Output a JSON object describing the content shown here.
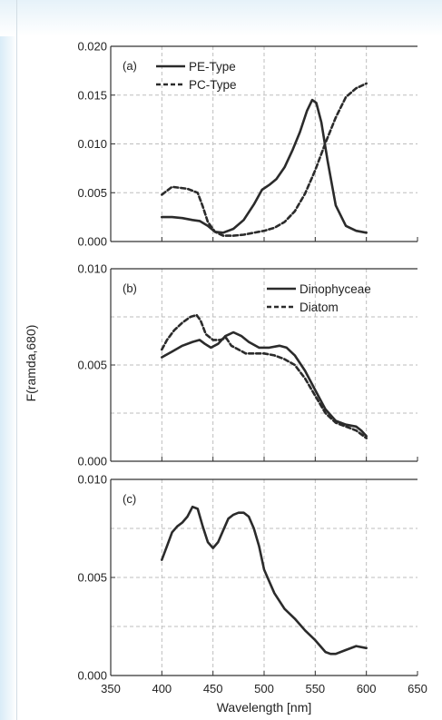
{
  "colors": {
    "line": "#2b2b2b",
    "grid": "#bdbdbd",
    "axis": "#333333",
    "bg_accent": "#d9ecf7"
  },
  "chart_data": [
    {
      "type": "line",
      "panel_label": "(a)",
      "xlim": [
        350,
        650
      ],
      "ylim": [
        0,
        0.02
      ],
      "yticks": [
        "0.000",
        "0.005",
        "0.010",
        "0.015",
        "0.020"
      ],
      "ytick_values": [
        0,
        0.005,
        0.01,
        0.015,
        0.02
      ],
      "grid": true,
      "legend": "top-left",
      "series": [
        {
          "name": "PE-Type",
          "style": "solid",
          "x": [
            400,
            410,
            420,
            430,
            437,
            445,
            452,
            460,
            470,
            480,
            490,
            498,
            505,
            512,
            520,
            528,
            535,
            542,
            547,
            551,
            556,
            562,
            570,
            580,
            590,
            600
          ],
          "y": [
            0.0025,
            0.0025,
            0.0024,
            0.0022,
            0.0021,
            0.0016,
            0.001,
            0.0009,
            0.0013,
            0.0022,
            0.0038,
            0.0053,
            0.0058,
            0.0064,
            0.0076,
            0.0094,
            0.0112,
            0.0134,
            0.0145,
            0.0142,
            0.0122,
            0.0083,
            0.0037,
            0.0016,
            0.0011,
            0.0009
          ]
        },
        {
          "name": "PC-Type",
          "style": "dashed",
          "x": [
            400,
            405,
            410,
            418,
            425,
            430,
            435,
            440,
            445,
            452,
            460,
            470,
            480,
            490,
            500,
            510,
            520,
            530,
            540,
            550,
            560,
            570,
            580,
            590,
            600
          ],
          "y": [
            0.0048,
            0.0052,
            0.0056,
            0.0055,
            0.0054,
            0.0052,
            0.005,
            0.0036,
            0.002,
            0.001,
            0.0006,
            0.0006,
            0.0007,
            0.0009,
            0.0011,
            0.0014,
            0.002,
            0.0031,
            0.0049,
            0.0073,
            0.0101,
            0.0127,
            0.0148,
            0.0157,
            0.0162
          ]
        }
      ]
    },
    {
      "type": "line",
      "panel_label": "(b)",
      "xlim": [
        350,
        650
      ],
      "ylim": [
        0,
        0.01
      ],
      "yticks": [
        "0.000",
        "0.005",
        "0.010"
      ],
      "ytick_values": [
        0,
        0.005,
        0.01
      ],
      "grid": true,
      "legend": "top-right",
      "series": [
        {
          "name": "Dinophyceae",
          "style": "solid",
          "x": [
            400,
            410,
            420,
            430,
            437,
            442,
            448,
            455,
            462,
            470,
            478,
            485,
            495,
            505,
            515,
            522,
            530,
            540,
            550,
            560,
            570,
            580,
            590,
            595,
            600
          ],
          "y": [
            0.0054,
            0.0057,
            0.006,
            0.0062,
            0.0063,
            0.0061,
            0.0059,
            0.0061,
            0.0065,
            0.0067,
            0.0065,
            0.0062,
            0.0059,
            0.0059,
            0.006,
            0.0059,
            0.0055,
            0.0047,
            0.0037,
            0.0027,
            0.0021,
            0.0019,
            0.0018,
            0.0016,
            0.0013
          ]
        },
        {
          "name": "Diatom",
          "style": "dashed",
          "x": [
            400,
            405,
            412,
            420,
            428,
            434,
            438,
            443,
            450,
            457,
            463,
            468,
            475,
            482,
            490,
            500,
            510,
            520,
            530,
            540,
            550,
            560,
            570,
            580,
            590,
            600
          ],
          "y": [
            0.0058,
            0.0063,
            0.0068,
            0.0072,
            0.0075,
            0.0076,
            0.0073,
            0.0066,
            0.0063,
            0.0063,
            0.0064,
            0.006,
            0.0058,
            0.0056,
            0.0056,
            0.0056,
            0.0055,
            0.0053,
            0.005,
            0.0043,
            0.0034,
            0.0025,
            0.002,
            0.0018,
            0.0016,
            0.0012
          ]
        }
      ]
    },
    {
      "type": "line",
      "panel_label": "(c)",
      "xlim": [
        350,
        650
      ],
      "ylim": [
        0,
        0.01
      ],
      "yticks": [
        "0.000",
        "0.005",
        "0.010"
      ],
      "ytick_values": [
        0,
        0.005,
        0.01
      ],
      "xticks": [
        "350",
        "400",
        "450",
        "500",
        "550",
        "600",
        "650"
      ],
      "xtick_values": [
        350,
        400,
        450,
        500,
        550,
        600,
        650
      ],
      "grid": true,
      "series": [
        {
          "name": "",
          "style": "solid",
          "x": [
            400,
            405,
            410,
            415,
            420,
            425,
            430,
            435,
            440,
            445,
            450,
            455,
            460,
            465,
            470,
            475,
            480,
            485,
            490,
            495,
            500,
            510,
            520,
            530,
            540,
            550,
            560,
            565,
            570,
            580,
            590,
            600
          ],
          "y": [
            0.0059,
            0.0066,
            0.0073,
            0.0076,
            0.0078,
            0.0081,
            0.0086,
            0.0085,
            0.0076,
            0.0068,
            0.0065,
            0.0068,
            0.0074,
            0.008,
            0.0082,
            0.0083,
            0.0083,
            0.0081,
            0.0075,
            0.0066,
            0.0054,
            0.0042,
            0.0034,
            0.0029,
            0.0023,
            0.0018,
            0.0012,
            0.0011,
            0.0011,
            0.0013,
            0.0015,
            0.0014
          ]
        }
      ]
    }
  ],
  "axis": {
    "ylabel": "F(ramda,680)",
    "xlabel": "Wavelength [nm]"
  }
}
